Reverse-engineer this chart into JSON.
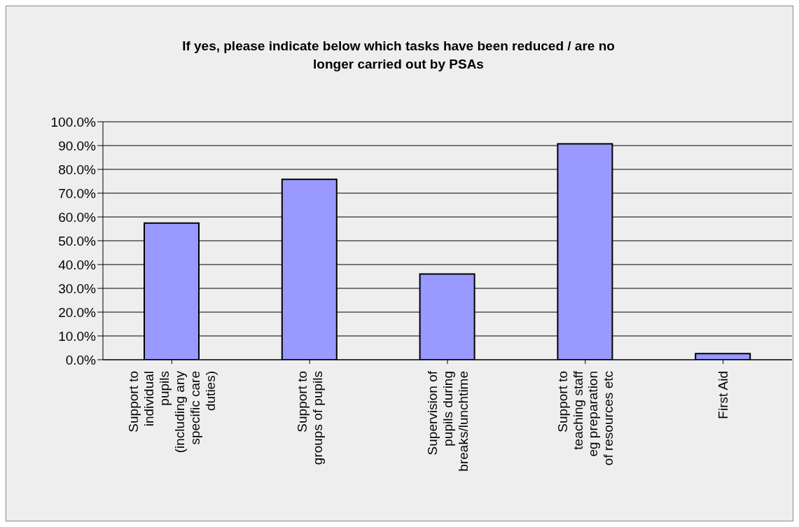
{
  "chart_data": {
    "type": "bar",
    "title": "If yes, please indicate below which tasks have been reduced / are no longer carried out by PSAs",
    "categories": [
      "Support to individual pupils (including any specific care duties)",
      "Support to groups of pupils",
      "Supervision of pupils during breaks/lunchtime",
      "Support to teaching staff eg preparation of resources etc",
      "First Aid"
    ],
    "values": [
      57.4,
      75.8,
      36.0,
      90.7,
      2.6
    ],
    "color": "#9999ff",
    "ylim": [
      0,
      100
    ],
    "yticks": [
      {
        "value": 0,
        "label": "0.0%"
      },
      {
        "value": 10,
        "label": "10.0%"
      },
      {
        "value": 20,
        "label": "20.0%"
      },
      {
        "value": 30,
        "label": "30.0%"
      },
      {
        "value": 40,
        "label": "40.0%"
      },
      {
        "value": 50,
        "label": "50.0%"
      },
      {
        "value": 60,
        "label": "60.0%"
      },
      {
        "value": 70,
        "label": "70.0%"
      },
      {
        "value": 80,
        "label": "80.0%"
      },
      {
        "value": 90,
        "label": "90.0%"
      },
      {
        "value": 100,
        "label": "100.0%"
      }
    ],
    "grid": "y",
    "legend": false
  }
}
